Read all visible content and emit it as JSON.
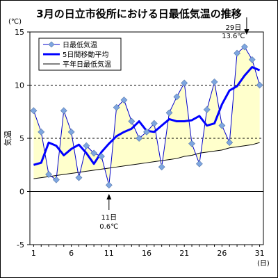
{
  "chart_data": {
    "type": "line",
    "title": "3月の日立市役所における日最低気温の推移",
    "unit_y": "(℃)",
    "unit_x": "(日)",
    "ylabel": "気温",
    "ylim": [
      -5,
      15
    ],
    "yticks": [
      -5,
      0,
      5,
      10,
      15
    ],
    "xticks": [
      1,
      6,
      11,
      16,
      21,
      26,
      31
    ],
    "grid": "dashed horizontal at 5, 10",
    "legend_position": "top-left",
    "x": [
      1,
      2,
      3,
      4,
      5,
      6,
      7,
      8,
      9,
      10,
      11,
      12,
      13,
      14,
      15,
      16,
      17,
      18,
      19,
      20,
      21,
      22,
      23,
      24,
      25,
      26,
      27,
      28,
      29,
      30,
      31
    ],
    "series": [
      {
        "name": "日最低気温",
        "style": "line-with-diamond-markers",
        "color": "#0000cc",
        "marker_color": "#7ea6e0",
        "values": [
          7.6,
          5.6,
          1.6,
          1.1,
          7.6,
          5.6,
          1.3,
          4.3,
          3.6,
          3.3,
          0.6,
          7.9,
          8.6,
          6.6,
          5.0,
          5.6,
          6.4,
          2.3,
          7.4,
          8.9,
          10.2,
          4.5,
          2.6,
          7.7,
          10.3,
          6.2,
          4.6,
          13.0,
          13.6,
          12.4,
          10.0
        ]
      },
      {
        "name": "5日間移動平均",
        "style": "thick-line",
        "color": "#0000ff",
        "values": [
          2.5,
          2.7,
          4.6,
          4.3,
          3.4,
          4.0,
          4.4,
          3.6,
          2.6,
          3.7,
          4.5,
          5.2,
          5.6,
          5.9,
          6.6,
          5.7,
          5.6,
          6.2,
          6.8,
          6.6,
          6.6,
          6.7,
          7.1,
          6.2,
          6.4,
          8.2,
          9.5,
          9.9,
          10.9,
          11.7,
          11.4
        ]
      },
      {
        "name": "平年日最低気温",
        "style": "thin-line-with-fill",
        "color": "#000000",
        "fill_color": "#ffffcc",
        "values": [
          1.2,
          1.3,
          1.4,
          1.5,
          1.6,
          1.7,
          1.8,
          1.9,
          2.0,
          2.1,
          2.2,
          2.3,
          2.4,
          2.5,
          2.6,
          2.7,
          2.8,
          2.9,
          3.0,
          3.1,
          3.3,
          3.4,
          3.6,
          3.7,
          3.8,
          3.9,
          4.1,
          4.2,
          4.3,
          4.4,
          4.6
        ]
      }
    ],
    "annotations": [
      {
        "day_label": "29日",
        "value_label": "13.6℃",
        "day": 29,
        "value": 13.6,
        "side": "above"
      },
      {
        "day_label": "11日",
        "value_label": "0.6℃",
        "day": 11,
        "value": 0.6,
        "side": "below"
      }
    ]
  }
}
